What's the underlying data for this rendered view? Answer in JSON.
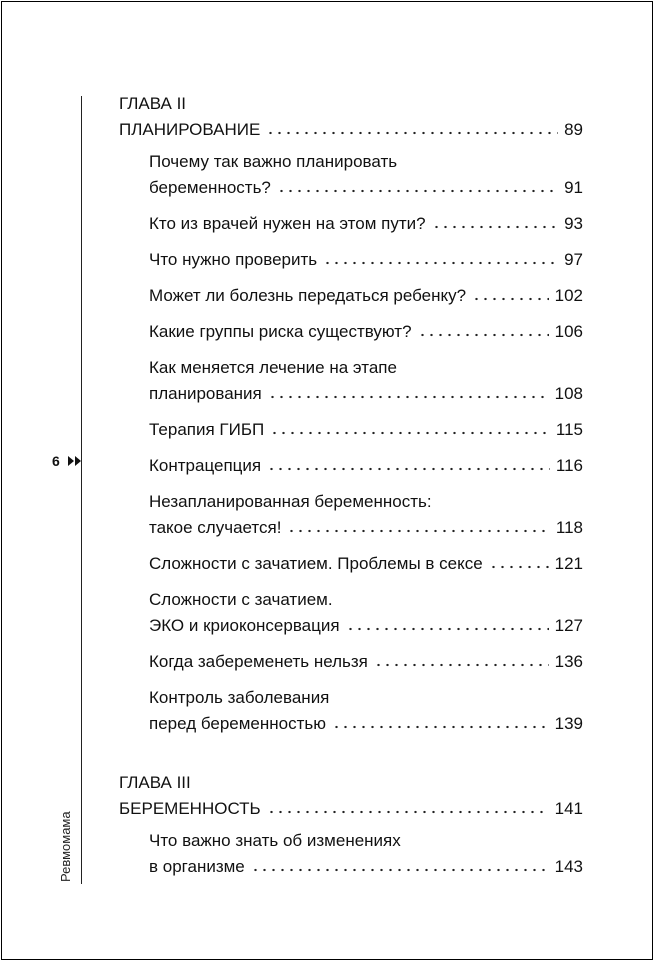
{
  "page_number": "6",
  "running_title": "Ревмомама",
  "chapters": [
    {
      "label": "ГЛАВА II",
      "title": "ПЛАНИРОВАНИЕ",
      "page": "89",
      "entries": [
        {
          "lines": [
            "Почему так важно планировать",
            "беременность?"
          ],
          "page": "91"
        },
        {
          "lines": [
            "Кто из врачей нужен на этом пути?"
          ],
          "page": "93"
        },
        {
          "lines": [
            "Что нужно проверить"
          ],
          "page": "97"
        },
        {
          "lines": [
            "Может ли болезнь передаться ребенку?"
          ],
          "page": "102"
        },
        {
          "lines": [
            "Какие группы риска существуют?"
          ],
          "page": "106"
        },
        {
          "lines": [
            "Как меняется лечение на этапе",
            "планирования"
          ],
          "page": "108"
        },
        {
          "lines": [
            "Терапия ГИБП"
          ],
          "page": "115"
        },
        {
          "lines": [
            "Контрацепция"
          ],
          "page": "116"
        },
        {
          "lines": [
            "Незапланированная беременность:",
            "такое случается!"
          ],
          "page": "118"
        },
        {
          "lines": [
            "Сложности с зачатием. Проблемы в сексе"
          ],
          "page": "121"
        },
        {
          "lines": [
            "Сложности с зачатием.",
            "ЭКО и криоконсервация"
          ],
          "page": "127"
        },
        {
          "lines": [
            "Когда забеременеть нельзя"
          ],
          "page": "136"
        },
        {
          "lines": [
            "Контроль заболевания",
            "перед беременностью"
          ],
          "page": "139"
        }
      ]
    },
    {
      "label": "ГЛАВА III",
      "title": "БЕРЕМЕННОСТЬ",
      "page": "141",
      "entries": [
        {
          "lines": [
            "Что важно знать об изменениях",
            "в организме"
          ],
          "page": "143"
        }
      ]
    }
  ]
}
